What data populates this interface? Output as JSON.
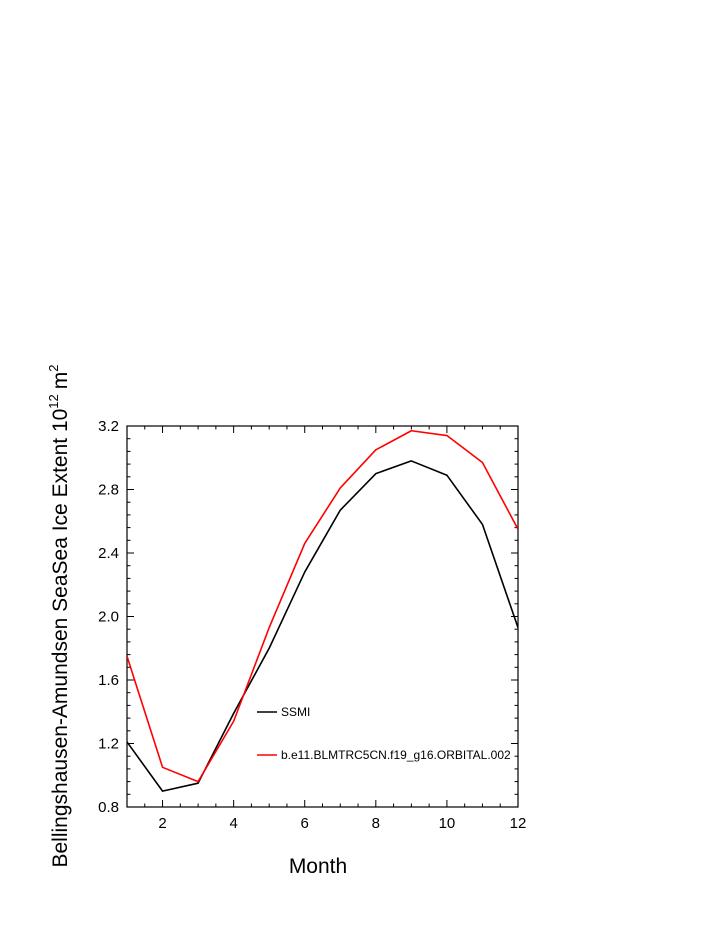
{
  "chart_data": {
    "type": "line",
    "title": "",
    "xlabel": "Month",
    "ylabel": "Bellingshausen-Amundsen SeaSea Ice Extent 10",
    "ylabel_sup": "12",
    "ylabel_unit": "m",
    "ylabel_unit_sup": "2",
    "xlim": [
      1,
      12
    ],
    "ylim": [
      0.8,
      3.2
    ],
    "xticks": [
      2,
      4,
      6,
      8,
      10,
      12
    ],
    "yticks": [
      0.8,
      1.2,
      1.6,
      2.0,
      2.4,
      2.8,
      3.2
    ],
    "ytick_labels": [
      "0.8",
      "1.2",
      "1.6",
      "2.0",
      "2.4",
      "2.8",
      "3.2"
    ],
    "grid": false,
    "legend_position": "inside-lower-center",
    "x": [
      1,
      2,
      3,
      4,
      5,
      6,
      7,
      8,
      9,
      10,
      11,
      12
    ],
    "series": [
      {
        "name": "SSMI",
        "color": "#000000",
        "values": [
          1.21,
          0.9,
          0.95,
          1.39,
          1.8,
          2.28,
          2.67,
          2.9,
          2.98,
          2.89,
          2.58,
          1.93
        ]
      },
      {
        "name": "b.e11.BLMTRC5CN.f19_g16.ORBITAL.002",
        "color": "#ff0000",
        "values": [
          1.75,
          1.05,
          0.96,
          1.34,
          1.93,
          2.46,
          2.81,
          3.05,
          3.17,
          3.14,
          2.97,
          2.55
        ]
      }
    ]
  }
}
